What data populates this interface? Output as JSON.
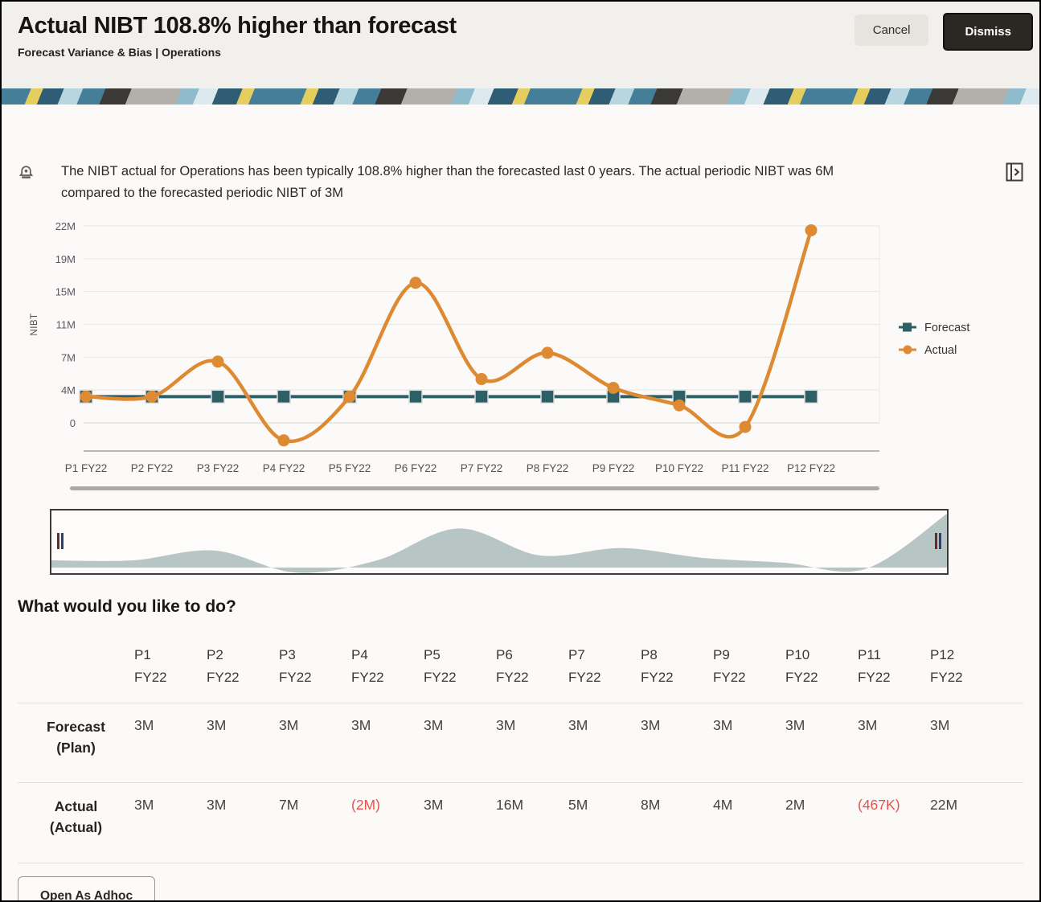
{
  "header": {
    "title": "Actual NIBT 108.8% higher than forecast",
    "subtitle": "Forecast Variance & Bias | Operations",
    "cancel_label": "Cancel",
    "dismiss_label": "Dismiss"
  },
  "insight": {
    "text": "The NIBT actual for Operations has been typically 108.8% higher than the forecasted last 0 years. The actual periodic NIBT was 6M compared to the forecasted periodic NIBT of 3M",
    "icons": {
      "left": "bell-icon",
      "right": "open-panel-icon"
    }
  },
  "chart_data": {
    "type": "line",
    "title": "",
    "xlabel": "",
    "ylabel": "NIBT",
    "categories": [
      "P1 FY22",
      "P2 FY22",
      "P3 FY22",
      "P4 FY22",
      "P5 FY22",
      "P6 FY22",
      "P7 FY22",
      "P8 FY22",
      "P9 FY22",
      "P10 FY22",
      "P11 FY22",
      "P12 FY22"
    ],
    "yticks": {
      "labels": [
        "0",
        "4M",
        "7M",
        "11M",
        "15M",
        "19M",
        "22M"
      ],
      "values": [
        0,
        3.75,
        7.5,
        11.25,
        15,
        18.75,
        22.5
      ]
    },
    "ylim": [
      -3,
      23.5
    ],
    "grid": true,
    "legend_position": "right",
    "series": [
      {
        "name": "Forecast",
        "marker": "square",
        "color": "#2d5f66",
        "values": [
          3,
          3,
          3,
          3,
          3,
          3,
          3,
          3,
          3,
          3,
          3,
          3
        ]
      },
      {
        "name": "Actual",
        "marker": "circle",
        "color": "#dd8a33",
        "values": [
          3,
          3,
          7,
          -2,
          3,
          16,
          5,
          8,
          4,
          2,
          -0.467,
          22
        ]
      }
    ],
    "units": "M"
  },
  "prompt_heading": "What would you like to do?",
  "table": {
    "col_periods": [
      "P1",
      "P2",
      "P3",
      "P4",
      "P5",
      "P6",
      "P7",
      "P8",
      "P9",
      "P10",
      "P11",
      "P12"
    ],
    "col_year": "FY22",
    "rows": [
      {
        "label": "Forecast",
        "sublabel": "(Plan)",
        "values": [
          "3M",
          "3M",
          "3M",
          "3M",
          "3M",
          "3M",
          "3M",
          "3M",
          "3M",
          "3M",
          "3M",
          "3M"
        ]
      },
      {
        "label": "Actual",
        "sublabel": "(Actual)",
        "values": [
          "3M",
          "3M",
          "7M",
          "(2M)",
          "3M",
          "16M",
          "5M",
          "8M",
          "4M",
          "2M",
          "(467K)",
          "22M"
        ]
      }
    ]
  },
  "actions": {
    "open_adhoc_label": "Open As Adhoc"
  },
  "colors": {
    "forecast": "#2d5f66",
    "actual": "#dd8a33",
    "negative": "#e5544a",
    "gridline": "#e9e6e3",
    "scrollbar": "#adaaa6",
    "overview_fill": "#b7c5c4",
    "header_bg": "#f2f0ed",
    "content_bg": "#fbfaf8",
    "dismiss_bg": "#2b2824"
  }
}
